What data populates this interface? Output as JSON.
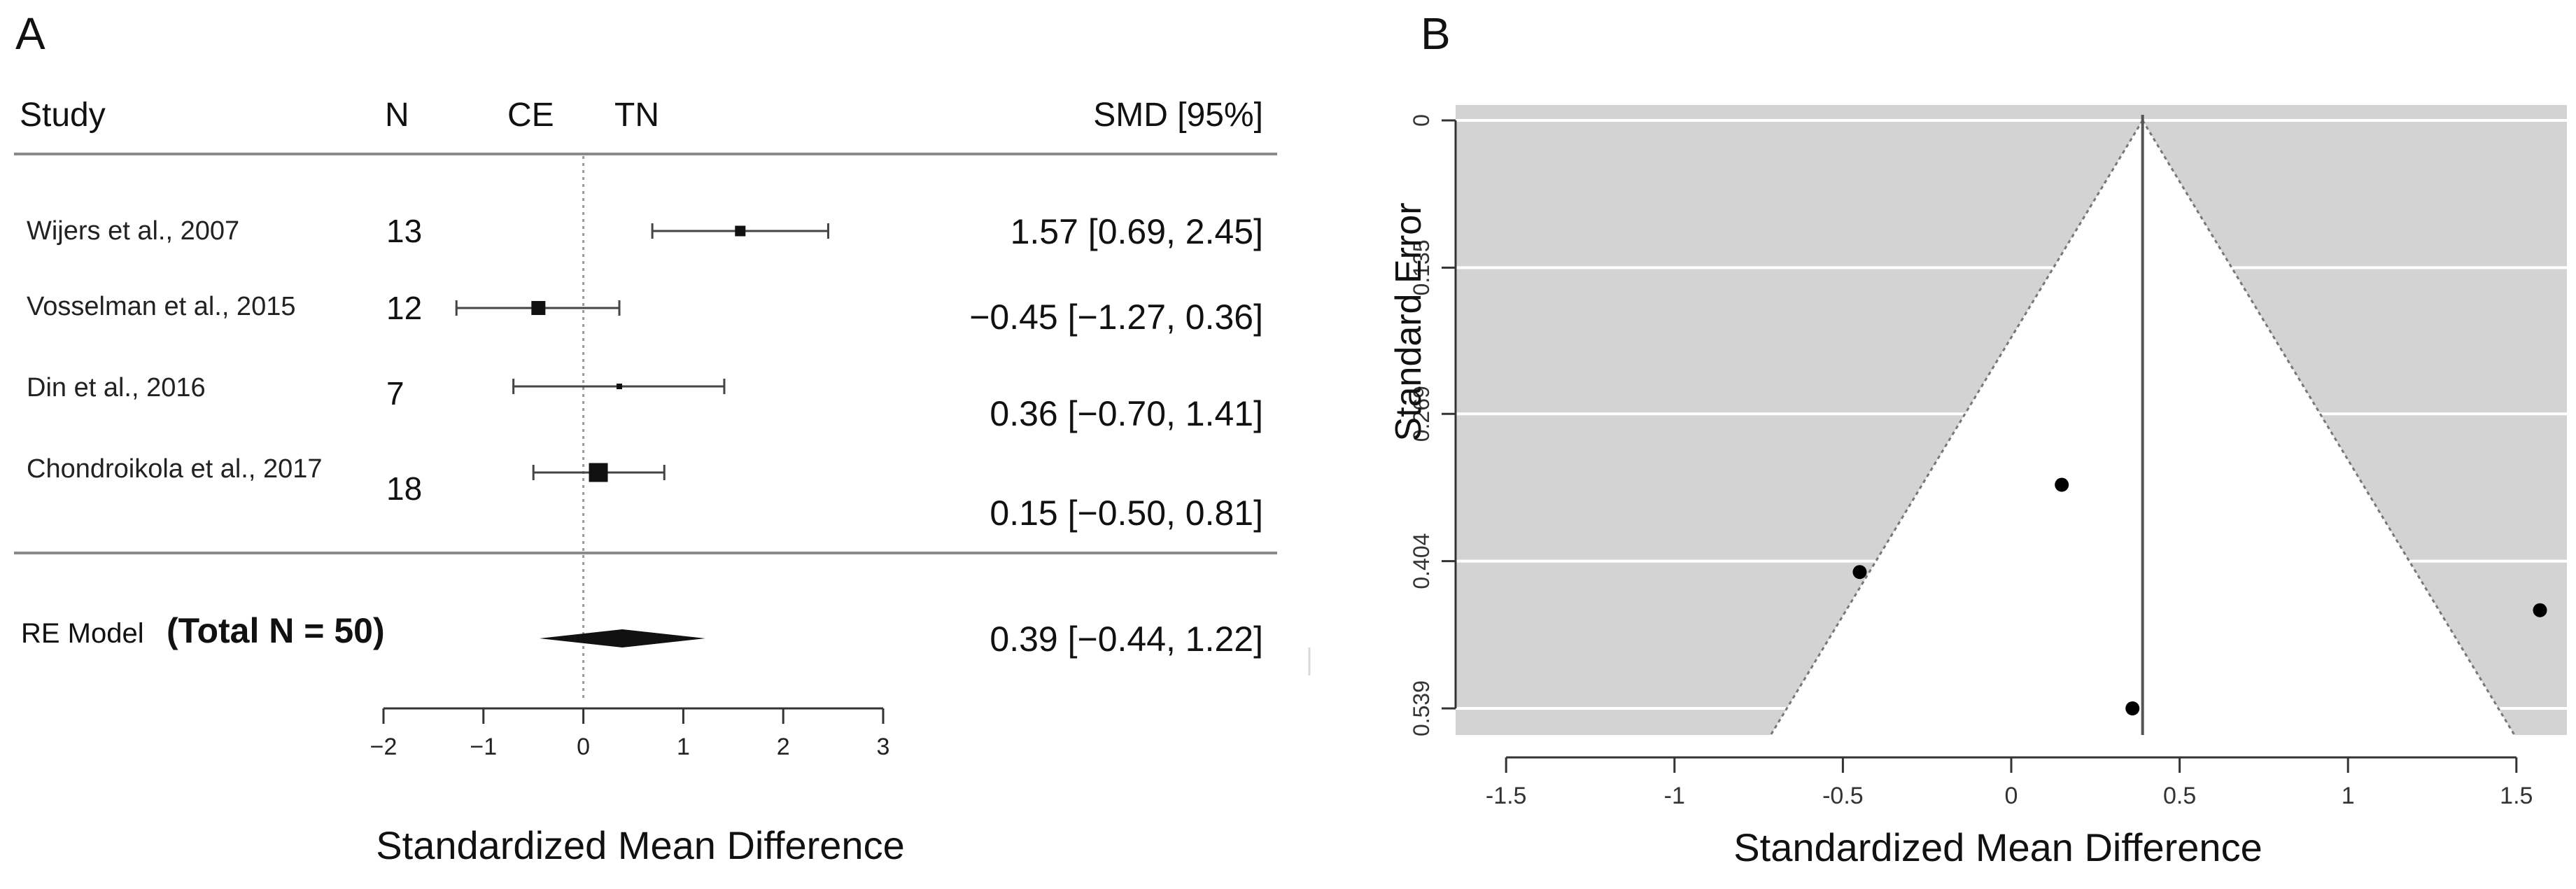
{
  "panel_a": {
    "label": "A",
    "headers": {
      "study": "Study",
      "n": "N",
      "ce": "CE",
      "tn": "TN",
      "smd": "SMD [95%]"
    },
    "summary_label": "RE Model",
    "summary_total": "(Total N = 50)",
    "xlabel": "Standardized Mean Difference"
  },
  "panel_b": {
    "label": "B",
    "xlabel": "Standardized Mean Difference",
    "ylabel": "Standard Error"
  },
  "chart_data": [
    {
      "type": "forest",
      "title": "A",
      "xlabel": "Standardized Mean Difference",
      "xlim": [
        -2,
        3
      ],
      "xticks": [
        -2,
        -1,
        0,
        1,
        2,
        3
      ],
      "reference_line": 0,
      "studies": [
        {
          "name": "Wijers et al., 2007",
          "n": "13",
          "smd": 1.57,
          "lower": 0.69,
          "upper": 2.45,
          "label": "1.57 [0.69, 2.45]"
        },
        {
          "name": "Vosselman et al., 2015",
          "n": "12",
          "smd": -0.45,
          "lower": -1.27,
          "upper": 0.36,
          "label": "−0.45 [−1.27, 0.36]"
        },
        {
          "name": "Din et al., 2016",
          "n": "7",
          "smd": 0.36,
          "lower": -0.7,
          "upper": 1.41,
          "label": "0.36 [−0.70, 1.41]"
        },
        {
          "name": "Chondroikola et al., 2017",
          "n": "18",
          "smd": 0.15,
          "lower": -0.5,
          "upper": 0.81,
          "label": "0.15 [−0.50, 0.81]"
        }
      ],
      "summary": {
        "name": "RE Model",
        "smd": 0.39,
        "lower": -0.44,
        "upper": 1.22,
        "label": "0.39 [−0.44, 1.22]"
      }
    },
    {
      "type": "funnel",
      "title": "B",
      "xlabel": "Standardized Mean Difference",
      "ylabel": "Standard Error",
      "xlim": [
        -1.65,
        1.65
      ],
      "ylim": [
        0.539,
        0
      ],
      "xticks": [
        -1.5,
        -1,
        -0.5,
        0,
        0.5,
        1,
        1.5
      ],
      "xtick_labels": [
        "-1.5",
        "-1",
        "-0.5",
        "0",
        "0.5",
        "1",
        "1.5"
      ],
      "yticks": [
        0,
        0.135,
        0.269,
        0.404,
        0.539
      ],
      "ytick_labels": [
        "0",
        "0.135",
        "0.269",
        "0.404",
        "0.539"
      ],
      "center": 0.39,
      "points": [
        {
          "x": 1.57,
          "se": 0.449
        },
        {
          "x": -0.45,
          "se": 0.414
        },
        {
          "x": 0.15,
          "se": 0.334
        },
        {
          "x": 0.36,
          "se": 0.539
        }
      ]
    }
  ]
}
